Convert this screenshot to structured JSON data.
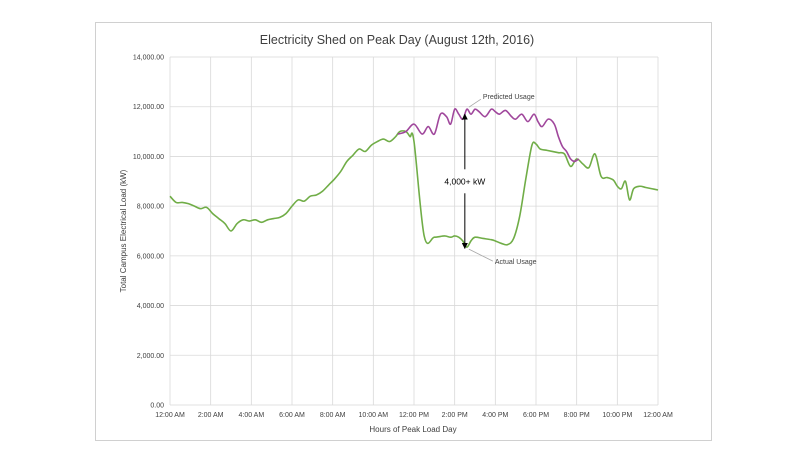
{
  "chart_data": {
    "type": "line",
    "title": "Electricity Shed on Peak Day (August 12th, 2016)",
    "xlabel": "Hours of Peak Load Day",
    "ylabel": "Total Campus Electrical Load (kW)",
    "ylim": [
      0,
      14000
    ],
    "xlim": [
      0,
      24
    ],
    "grid": true,
    "x_ticks": [
      0,
      2,
      4,
      6,
      8,
      10,
      12,
      14,
      16,
      18,
      20,
      22,
      24
    ],
    "x_tick_labels": [
      "12:00 AM",
      "2:00 AM",
      "4:00 AM",
      "6:00 AM",
      "8:00 AM",
      "10:00 AM",
      "12:00 PM",
      "2:00 PM",
      "4:00 PM",
      "6:00 PM",
      "8:00 PM",
      "10:00 PM",
      "12:00 AM"
    ],
    "y_ticks": [
      0,
      2000,
      4000,
      6000,
      8000,
      10000,
      12000,
      14000
    ],
    "y_tick_labels": [
      "0.00",
      "2,000.00",
      "4,000.00",
      "6,000.00",
      "8,000.00",
      "10,000.00",
      "12,000.00",
      "14,000.00"
    ],
    "series": [
      {
        "name": "Predicted Usage",
        "color": "#a0479c",
        "x": [
          11.2,
          11.6,
          12.0,
          12.4,
          12.7,
          13.0,
          13.3,
          13.6,
          13.8,
          14.0,
          14.2,
          14.4,
          14.6,
          14.8,
          15.0,
          15.2,
          15.5,
          15.8,
          16.0,
          16.2,
          16.5,
          16.8,
          17.0,
          17.3,
          17.6,
          17.9,
          18.1,
          18.3,
          18.6,
          18.9,
          19.1,
          19.3,
          19.5,
          19.7,
          19.9,
          20.1
        ],
        "values": [
          10900,
          11000,
          11300,
          10900,
          11200,
          10900,
          11700,
          11600,
          11300,
          11900,
          11700,
          11500,
          11900,
          11700,
          11900,
          11800,
          11600,
          11900,
          11800,
          11700,
          11850,
          11600,
          11500,
          11700,
          11400,
          11700,
          11400,
          11200,
          11500,
          11300,
          10800,
          10400,
          10200,
          9900,
          9800,
          9900
        ]
      },
      {
        "name": "Actual Usage",
        "color": "#70ad47",
        "x": [
          0,
          0.3,
          0.6,
          0.9,
          1.2,
          1.5,
          1.8,
          2.1,
          2.4,
          2.7,
          3.0,
          3.3,
          3.6,
          3.9,
          4.2,
          4.5,
          4.8,
          5.1,
          5.4,
          5.7,
          6.0,
          6.3,
          6.6,
          6.9,
          7.2,
          7.5,
          7.8,
          8.1,
          8.4,
          8.7,
          9.0,
          9.3,
          9.6,
          9.9,
          10.2,
          10.5,
          10.8,
          11.1,
          11.3,
          11.6,
          11.8,
          12.0,
          12.5,
          13.0,
          13.5,
          13.8,
          14.0,
          14.2,
          14.4,
          14.6,
          14.8,
          15.0,
          15.4,
          15.8,
          16.0,
          16.3,
          16.6,
          16.9,
          17.2,
          17.5,
          17.8,
          18.0,
          18.2,
          18.5,
          18.8,
          19.1,
          19.4,
          19.7,
          20.0,
          20.3,
          20.6,
          20.9,
          21.2,
          21.5,
          21.8,
          22.0,
          22.2,
          22.4,
          22.6,
          22.8,
          23.1,
          23.4,
          23.7,
          24.0
        ],
        "values": [
          8400,
          8150,
          8150,
          8100,
          8000,
          7900,
          7950,
          7700,
          7500,
          7300,
          7000,
          7300,
          7450,
          7400,
          7450,
          7350,
          7450,
          7500,
          7550,
          7700,
          8000,
          8250,
          8200,
          8400,
          8450,
          8600,
          8850,
          9100,
          9400,
          9800,
          10050,
          10300,
          10200,
          10450,
          10600,
          10700,
          10600,
          10800,
          11000,
          11000,
          10800,
          10600,
          6800,
          6750,
          6800,
          6750,
          6800,
          6750,
          6600,
          6350,
          6600,
          6750,
          6700,
          6650,
          6600,
          6500,
          6450,
          6700,
          7600,
          9100,
          10450,
          10500,
          10300,
          10250,
          10200,
          10150,
          10100,
          9600,
          9900,
          9700,
          9550,
          10100,
          9200,
          9150,
          9050,
          8800,
          8700,
          9000,
          8250,
          8700,
          8800,
          8750,
          8700,
          8650
        ]
      }
    ],
    "annotations": {
      "predicted_label": "Predicted Usage",
      "actual_label": "Actual Usage",
      "gap_label": "4,000+ kW",
      "gap_x": 14.5
    }
  }
}
